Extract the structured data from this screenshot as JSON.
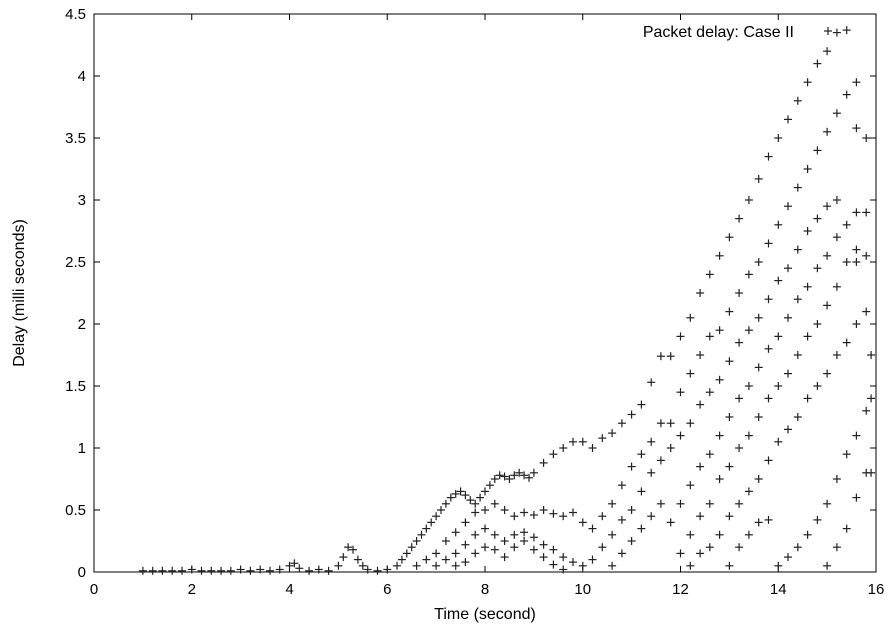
{
  "chart_data": {
    "type": "scatter",
    "xlabel": "Time (second)",
    "ylabel": "Delay (milli seconds)",
    "xlim": [
      0,
      16
    ],
    "ylim": [
      0,
      4.5
    ],
    "xticks": [
      0,
      2,
      4,
      6,
      8,
      10,
      12,
      14,
      16
    ],
    "yticks": [
      0,
      0.5,
      1,
      1.5,
      2,
      2.5,
      3,
      3.5,
      4,
      4.5
    ],
    "grid": false,
    "legend_position": "top-right",
    "marker": "plus",
    "series": [
      {
        "name": "Packet delay: Case II",
        "points": [
          [
            1.0,
            0.01
          ],
          [
            1.2,
            0.01
          ],
          [
            1.4,
            0.01
          ],
          [
            1.6,
            0.01
          ],
          [
            1.8,
            0.01
          ],
          [
            2.0,
            0.02
          ],
          [
            2.2,
            0.01
          ],
          [
            2.4,
            0.01
          ],
          [
            2.6,
            0.01
          ],
          [
            2.8,
            0.01
          ],
          [
            3.0,
            0.02
          ],
          [
            3.2,
            0.01
          ],
          [
            3.4,
            0.02
          ],
          [
            3.6,
            0.01
          ],
          [
            3.8,
            0.02
          ],
          [
            4.0,
            0.05
          ],
          [
            4.1,
            0.07
          ],
          [
            4.2,
            0.03
          ],
          [
            4.4,
            0.01
          ],
          [
            4.6,
            0.02
          ],
          [
            4.8,
            0.01
          ],
          [
            5.0,
            0.05
          ],
          [
            5.1,
            0.12
          ],
          [
            5.2,
            0.2
          ],
          [
            5.3,
            0.18
          ],
          [
            5.4,
            0.1
          ],
          [
            5.5,
            0.05
          ],
          [
            5.6,
            0.02
          ],
          [
            5.8,
            0.01
          ],
          [
            6.0,
            0.02
          ],
          [
            6.2,
            0.05
          ],
          [
            6.3,
            0.1
          ],
          [
            6.4,
            0.15
          ],
          [
            6.5,
            0.2
          ],
          [
            6.6,
            0.25
          ],
          [
            6.7,
            0.3
          ],
          [
            6.8,
            0.35
          ],
          [
            6.9,
            0.4
          ],
          [
            7.0,
            0.45
          ],
          [
            7.1,
            0.5
          ],
          [
            7.2,
            0.55
          ],
          [
            7.3,
            0.6
          ],
          [
            7.4,
            0.63
          ],
          [
            7.5,
            0.65
          ],
          [
            7.6,
            0.62
          ],
          [
            7.7,
            0.58
          ],
          [
            7.8,
            0.55
          ],
          [
            7.9,
            0.6
          ],
          [
            8.0,
            0.65
          ],
          [
            8.1,
            0.7
          ],
          [
            8.2,
            0.75
          ],
          [
            8.3,
            0.78
          ],
          [
            8.4,
            0.77
          ],
          [
            8.5,
            0.75
          ],
          [
            8.6,
            0.78
          ],
          [
            8.7,
            0.8
          ],
          [
            8.8,
            0.78
          ],
          [
            8.9,
            0.76
          ],
          [
            9.0,
            0.8
          ],
          [
            9.2,
            0.88
          ],
          [
            9.4,
            0.95
          ],
          [
            9.6,
            1.0
          ],
          [
            9.8,
            1.05
          ],
          [
            10.0,
            1.05
          ],
          [
            10.2,
            1.0
          ],
          [
            10.4,
            1.08
          ],
          [
            10.6,
            1.12
          ],
          [
            10.8,
            1.2
          ],
          [
            11.0,
            1.27
          ],
          [
            11.2,
            1.35
          ],
          [
            11.4,
            1.53
          ],
          [
            11.6,
            1.74
          ],
          [
            11.8,
            1.74
          ],
          [
            12.0,
            1.9
          ],
          [
            12.2,
            2.05
          ],
          [
            12.4,
            2.25
          ],
          [
            12.6,
            2.4
          ],
          [
            12.8,
            2.55
          ],
          [
            13.0,
            2.7
          ],
          [
            13.2,
            2.85
          ],
          [
            13.4,
            3.0
          ],
          [
            13.6,
            3.17
          ],
          [
            13.8,
            3.35
          ],
          [
            14.0,
            3.5
          ],
          [
            14.2,
            3.65
          ],
          [
            14.4,
            3.8
          ],
          [
            14.6,
            3.95
          ],
          [
            14.8,
            4.1
          ],
          [
            15.0,
            4.2
          ],
          [
            15.2,
            4.35
          ],
          [
            15.4,
            4.37
          ],
          [
            15.6,
            3.58
          ],
          [
            6.6,
            0.05
          ],
          [
            6.8,
            0.1
          ],
          [
            7.0,
            0.15
          ],
          [
            7.2,
            0.25
          ],
          [
            7.4,
            0.32
          ],
          [
            7.6,
            0.4
          ],
          [
            7.8,
            0.48
          ],
          [
            8.0,
            0.5
          ],
          [
            8.2,
            0.55
          ],
          [
            8.4,
            0.5
          ],
          [
            8.6,
            0.45
          ],
          [
            8.8,
            0.48
          ],
          [
            9.0,
            0.46
          ],
          [
            9.2,
            0.5
          ],
          [
            9.4,
            0.47
          ],
          [
            9.6,
            0.45
          ],
          [
            9.8,
            0.48
          ],
          [
            10.0,
            0.4
          ],
          [
            10.2,
            0.35
          ],
          [
            10.4,
            0.45
          ],
          [
            10.6,
            0.55
          ],
          [
            10.8,
            0.7
          ],
          [
            11.0,
            0.85
          ],
          [
            11.2,
            0.95
          ],
          [
            11.4,
            1.05
          ],
          [
            11.6,
            1.2
          ],
          [
            11.8,
            1.2
          ],
          [
            12.0,
            1.45
          ],
          [
            12.2,
            1.6
          ],
          [
            12.4,
            1.75
          ],
          [
            12.6,
            1.9
          ],
          [
            12.8,
            1.95
          ],
          [
            13.0,
            2.1
          ],
          [
            13.2,
            2.25
          ],
          [
            13.4,
            2.4
          ],
          [
            13.6,
            2.5
          ],
          [
            13.8,
            2.65
          ],
          [
            14.0,
            2.8
          ],
          [
            14.2,
            2.95
          ],
          [
            14.4,
            3.1
          ],
          [
            14.6,
            3.25
          ],
          [
            14.8,
            3.4
          ],
          [
            15.0,
            3.55
          ],
          [
            15.2,
            3.7
          ],
          [
            15.4,
            3.85
          ],
          [
            15.6,
            3.95
          ],
          [
            7.0,
            0.05
          ],
          [
            7.2,
            0.1
          ],
          [
            7.4,
            0.15
          ],
          [
            7.6,
            0.22
          ],
          [
            7.8,
            0.3
          ],
          [
            8.0,
            0.35
          ],
          [
            8.2,
            0.3
          ],
          [
            8.4,
            0.25
          ],
          [
            8.6,
            0.3
          ],
          [
            8.8,
            0.32
          ],
          [
            9.0,
            0.28
          ],
          [
            9.2,
            0.22
          ],
          [
            9.4,
            0.18
          ],
          [
            9.6,
            0.12
          ],
          [
            9.8,
            0.08
          ],
          [
            10.0,
            0.05
          ],
          [
            10.2,
            0.1
          ],
          [
            10.4,
            0.2
          ],
          [
            10.6,
            0.3
          ],
          [
            10.8,
            0.42
          ],
          [
            11.0,
            0.5
          ],
          [
            11.2,
            0.65
          ],
          [
            11.4,
            0.8
          ],
          [
            11.6,
            0.9
          ],
          [
            11.8,
            1.0
          ],
          [
            12.0,
            1.1
          ],
          [
            12.2,
            1.2
          ],
          [
            12.4,
            1.35
          ],
          [
            12.6,
            1.45
          ],
          [
            12.8,
            1.55
          ],
          [
            13.0,
            1.7
          ],
          [
            13.2,
            1.85
          ],
          [
            13.4,
            1.95
          ],
          [
            13.6,
            2.05
          ],
          [
            13.8,
            2.2
          ],
          [
            14.0,
            2.35
          ],
          [
            14.2,
            2.45
          ],
          [
            14.4,
            2.6
          ],
          [
            14.6,
            2.75
          ],
          [
            14.8,
            2.85
          ],
          [
            15.0,
            2.95
          ],
          [
            15.2,
            3.0
          ],
          [
            15.6,
            2.5
          ],
          [
            15.8,
            2.9
          ],
          [
            7.4,
            0.05
          ],
          [
            7.6,
            0.08
          ],
          [
            7.8,
            0.15
          ],
          [
            8.0,
            0.2
          ],
          [
            8.2,
            0.18
          ],
          [
            8.4,
            0.12
          ],
          [
            8.6,
            0.2
          ],
          [
            8.8,
            0.25
          ],
          [
            9.0,
            0.18
          ],
          [
            9.2,
            0.12
          ],
          [
            9.4,
            0.06
          ],
          [
            9.6,
            0.02
          ],
          [
            10.6,
            0.05
          ],
          [
            10.8,
            0.15
          ],
          [
            11.0,
            0.25
          ],
          [
            11.2,
            0.35
          ],
          [
            11.4,
            0.45
          ],
          [
            11.6,
            0.55
          ],
          [
            11.8,
            0.4
          ],
          [
            12.0,
            0.55
          ],
          [
            12.2,
            0.7
          ],
          [
            12.4,
            0.85
          ],
          [
            12.6,
            0.95
          ],
          [
            12.8,
            1.1
          ],
          [
            13.0,
            1.25
          ],
          [
            13.2,
            1.4
          ],
          [
            13.4,
            1.5
          ],
          [
            13.6,
            1.65
          ],
          [
            13.8,
            1.8
          ],
          [
            14.0,
            1.9
          ],
          [
            14.2,
            2.05
          ],
          [
            14.4,
            2.2
          ],
          [
            14.6,
            2.3
          ],
          [
            14.8,
            2.45
          ],
          [
            15.0,
            2.55
          ],
          [
            15.2,
            2.7
          ],
          [
            15.4,
            2.8
          ],
          [
            15.6,
            2.9
          ],
          [
            15.8,
            3.5
          ],
          [
            12.0,
            0.15
          ],
          [
            12.2,
            0.3
          ],
          [
            12.4,
            0.45
          ],
          [
            12.6,
            0.55
          ],
          [
            12.8,
            0.75
          ],
          [
            13.0,
            0.85
          ],
          [
            13.2,
            1.0
          ],
          [
            13.4,
            1.1
          ],
          [
            13.6,
            1.25
          ],
          [
            13.8,
            1.4
          ],
          [
            14.0,
            1.5
          ],
          [
            14.2,
            1.6
          ],
          [
            14.4,
            1.75
          ],
          [
            14.6,
            1.9
          ],
          [
            14.8,
            2.0
          ],
          [
            15.0,
            2.15
          ],
          [
            15.2,
            2.3
          ],
          [
            15.4,
            2.5
          ],
          [
            15.6,
            2.6
          ],
          [
            15.8,
            2.55
          ],
          [
            12.2,
            0.05
          ],
          [
            12.4,
            0.15
          ],
          [
            12.6,
            0.2
          ],
          [
            12.8,
            0.3
          ],
          [
            13.0,
            0.45
          ],
          [
            13.2,
            0.55
          ],
          [
            13.4,
            0.65
          ],
          [
            13.6,
            0.75
          ],
          [
            13.8,
            0.9
          ],
          [
            14.0,
            1.05
          ],
          [
            14.2,
            1.15
          ],
          [
            14.4,
            1.25
          ],
          [
            14.6,
            1.4
          ],
          [
            14.8,
            1.5
          ],
          [
            15.0,
            1.6
          ],
          [
            15.2,
            1.75
          ],
          [
            15.4,
            1.85
          ],
          [
            15.6,
            2.0
          ],
          [
            15.8,
            2.1
          ],
          [
            13.0,
            0.05
          ],
          [
            13.2,
            0.2
          ],
          [
            13.4,
            0.3
          ],
          [
            13.6,
            0.4
          ],
          [
            13.8,
            0.42
          ],
          [
            14.0,
            0.05
          ],
          [
            14.2,
            0.12
          ],
          [
            14.4,
            0.2
          ],
          [
            14.6,
            0.3
          ],
          [
            14.8,
            0.42
          ],
          [
            15.0,
            0.55
          ],
          [
            15.2,
            0.75
          ],
          [
            15.4,
            0.95
          ],
          [
            15.6,
            1.1
          ],
          [
            15.8,
            1.3
          ],
          [
            15.0,
            0.05
          ],
          [
            15.2,
            0.2
          ],
          [
            15.4,
            0.35
          ],
          [
            15.6,
            0.6
          ],
          [
            15.8,
            0.8
          ],
          [
            15.9,
            1.4
          ],
          [
            15.9,
            1.75
          ],
          [
            15.9,
            0.8
          ]
        ]
      }
    ]
  }
}
